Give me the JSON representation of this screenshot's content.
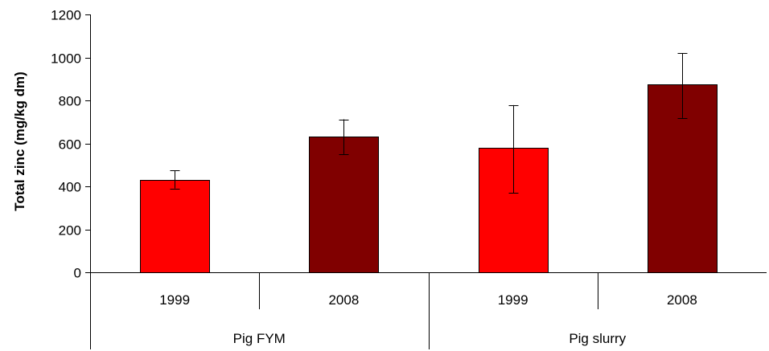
{
  "chart_data": {
    "type": "bar",
    "ylabel": "Total zinc (mg/kg dm)",
    "xlabel": "",
    "ylim": [
      0,
      1200
    ],
    "yticks": [
      0,
      200,
      400,
      600,
      800,
      1000,
      1200
    ],
    "grid": false,
    "groups": [
      {
        "label": "Pig FYM",
        "bars": [
          {
            "label": "1999",
            "value": 430,
            "err_low": 390,
            "err_high": 475,
            "color": "#ff0000"
          },
          {
            "label": "2008",
            "value": 632,
            "err_low": 550,
            "err_high": 712,
            "color": "#800000"
          }
        ]
      },
      {
        "label": "Pig slurry",
        "bars": [
          {
            "label": "1999",
            "value": 578,
            "err_low": 370,
            "err_high": 778,
            "color": "#ff0000"
          },
          {
            "label": "2008",
            "value": 873,
            "err_low": 718,
            "err_high": 1020,
            "color": "#800000"
          }
        ]
      }
    ]
  }
}
